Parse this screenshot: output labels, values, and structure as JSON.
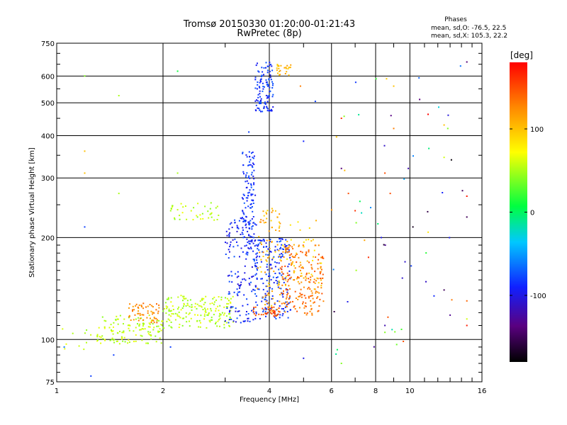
{
  "chart_data": {
    "type": "scatter",
    "title": "Tromsø 20150330 01:20:00-01:21:43",
    "subtitle": "RwPretec (8p)",
    "xlabel": "Frequency [MHz]",
    "ylabel": "Stationary phase Virtual Height [km]",
    "x_scale": "log",
    "y_scale": "log",
    "xlim": [
      1,
      16
    ],
    "ylim": [
      75,
      750
    ],
    "x_ticks": [
      1,
      2,
      4,
      6,
      8,
      10,
      16
    ],
    "y_ticks": [
      75,
      100,
      200,
      300,
      400,
      500,
      600,
      750
    ],
    "grid": true,
    "stats": {
      "heading": "Phases",
      "line1": "mean, sd,O: -76.5, 22.5",
      "line2": "mean, sd,X: 105.3, 22.2"
    },
    "colorbar": {
      "label": "[deg]",
      "range": [
        -180,
        180
      ],
      "ticks": [
        100,
        0,
        -100
      ]
    },
    "clusters": [
      {
        "f_min": 1.0,
        "f_max": 1.25,
        "h_min": 90,
        "h_max": 110,
        "phase_min": 40,
        "phase_max": 70,
        "count": 10
      },
      {
        "f_min": 1.3,
        "f_max": 2.0,
        "h_min": 97,
        "h_max": 118,
        "phase_min": 40,
        "phase_max": 70,
        "count": 130
      },
      {
        "f_min": 1.6,
        "f_max": 1.95,
        "h_min": 112,
        "h_max": 128,
        "phase_min": 110,
        "phase_max": 140,
        "count": 60
      },
      {
        "f_min": 2.0,
        "f_max": 3.2,
        "h_min": 108,
        "h_max": 135,
        "phase_min": 40,
        "phase_max": 70,
        "count": 180
      },
      {
        "f_min": 2.1,
        "f_max": 2.9,
        "h_min": 225,
        "h_max": 255,
        "phase_min": 40,
        "phase_max": 70,
        "count": 40
      },
      {
        "f_min": 3.0,
        "f_max": 3.7,
        "h_min": 112,
        "h_max": 230,
        "phase_min": -110,
        "phase_max": -70,
        "count": 160
      },
      {
        "f_min": 3.35,
        "f_max": 3.65,
        "h_min": 190,
        "h_max": 360,
        "phase_min": -100,
        "phase_max": -70,
        "count": 120
      },
      {
        "f_min": 3.6,
        "f_max": 4.6,
        "h_min": 115,
        "h_max": 200,
        "phase_min": -100,
        "phase_max": -70,
        "count": 200
      },
      {
        "f_min": 3.7,
        "f_max": 4.3,
        "h_min": 120,
        "h_max": 245,
        "phase_min": 90,
        "phase_max": 130,
        "count": 80
      },
      {
        "f_min": 3.6,
        "f_max": 4.3,
        "h_min": 117,
        "h_max": 125,
        "phase_min": 140,
        "phase_max": 160,
        "count": 40
      },
      {
        "f_min": 4.3,
        "f_max": 5.7,
        "h_min": 118,
        "h_max": 190,
        "phase_min": 120,
        "phase_max": 150,
        "count": 200
      },
      {
        "f_min": 4.2,
        "f_max": 5.7,
        "h_min": 140,
        "h_max": 230,
        "phase_min": 80,
        "phase_max": 110,
        "count": 60
      },
      {
        "f_min": 3.65,
        "f_max": 4.1,
        "h_min": 470,
        "h_max": 660,
        "phase_min": -100,
        "phase_max": -70,
        "count": 110
      },
      {
        "f_min": 4.2,
        "f_max": 4.6,
        "h_min": 600,
        "h_max": 650,
        "phase_min": 90,
        "phase_max": 120,
        "count": 25
      },
      {
        "f_min": 6.0,
        "f_max": 14.5,
        "h_min": 90,
        "h_max": 660,
        "phase_min": -180,
        "phase_max": 180,
        "count": 55
      }
    ],
    "sparse_points": [
      {
        "f": 1.2,
        "h": 600,
        "phase": 40
      },
      {
        "f": 1.5,
        "h": 525,
        "phase": 50
      },
      {
        "f": 1.2,
        "h": 360,
        "phase": 100
      },
      {
        "f": 1.2,
        "h": 310,
        "phase": 100
      },
      {
        "f": 1.5,
        "h": 270,
        "phase": 50
      },
      {
        "f": 1.2,
        "h": 215,
        "phase": -80
      },
      {
        "f": 2.2,
        "h": 620,
        "phase": 10
      },
      {
        "f": 2.2,
        "h": 310,
        "phase": 50
      },
      {
        "f": 3.5,
        "h": 410,
        "phase": -80
      },
      {
        "f": 5.0,
        "h": 385,
        "phase": -90
      },
      {
        "f": 5.4,
        "h": 505,
        "phase": -80
      },
      {
        "f": 4.9,
        "h": 560,
        "phase": 130
      },
      {
        "f": 6.4,
        "h": 450,
        "phase": 160
      },
      {
        "f": 6.4,
        "h": 320,
        "phase": -140
      },
      {
        "f": 6.7,
        "h": 270,
        "phase": 150
      },
      {
        "f": 7.0,
        "h": 240,
        "phase": 160
      },
      {
        "f": 8.3,
        "h": 200,
        "phase": -100
      },
      {
        "f": 8.5,
        "h": 310,
        "phase": 150
      },
      {
        "f": 8.8,
        "h": 270,
        "phase": 150
      },
      {
        "f": 9.0,
        "h": 560,
        "phase": 100
      },
      {
        "f": 9.0,
        "h": 420,
        "phase": 130
      },
      {
        "f": 9.9,
        "h": 320,
        "phase": -120
      },
      {
        "f": 10.2,
        "h": 215,
        "phase": -170
      },
      {
        "f": 12.5,
        "h": 430,
        "phase": 100
      },
      {
        "f": 12.5,
        "h": 345,
        "phase": 60
      },
      {
        "f": 14.5,
        "h": 660,
        "phase": -140
      },
      {
        "f": 14.5,
        "h": 265,
        "phase": 170
      },
      {
        "f": 14.5,
        "h": 230,
        "phase": -150
      },
      {
        "f": 12.5,
        "h": 140,
        "phase": -150
      },
      {
        "f": 14.5,
        "h": 130,
        "phase": 140
      },
      {
        "f": 13.0,
        "h": 118,
        "phase": -130
      },
      {
        "f": 14.5,
        "h": 115,
        "phase": 60
      },
      {
        "f": 14.5,
        "h": 110,
        "phase": 170
      },
      {
        "f": 8.5,
        "h": 105,
        "phase": 40
      },
      {
        "f": 8.5,
        "h": 110,
        "phase": -120
      },
      {
        "f": 6.4,
        "h": 85,
        "phase": 40
      },
      {
        "f": 5.0,
        "h": 88,
        "phase": -100
      },
      {
        "f": 1.05,
        "h": 95,
        "phase": -60
      },
      {
        "f": 1.25,
        "h": 78,
        "phase": -80
      },
      {
        "f": 1.45,
        "h": 90,
        "phase": -80
      },
      {
        "f": 2.1,
        "h": 95,
        "phase": -80
      }
    ]
  }
}
